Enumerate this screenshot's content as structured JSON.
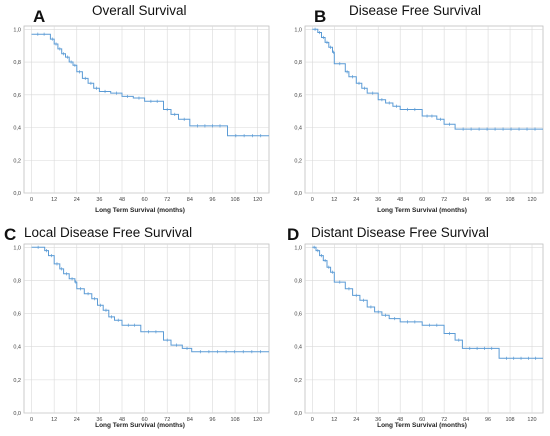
{
  "chart_data": [
    {
      "type": "line",
      "letter": "A",
      "title": "Overall Survival",
      "xlabel": "Long Term Survival (months)",
      "ylabel": "",
      "xlim": [
        -4,
        126
      ],
      "ylim": [
        0,
        1.02
      ],
      "xticks": [
        "0",
        "12",
        "24",
        "36",
        "48",
        "60",
        "72",
        "84",
        "96",
        "108",
        "120"
      ],
      "yticks": [
        "0,0",
        "0,2",
        "0,4",
        "0,6",
        "0,8",
        "1,0"
      ],
      "grid": true,
      "color": "#5b9bd5",
      "series": [
        {
          "x": [
            0,
            10,
            12,
            14,
            16,
            18,
            20,
            22,
            24,
            27,
            30,
            33,
            36,
            42,
            48,
            54,
            60,
            70,
            74,
            78,
            84,
            104,
            126
          ],
          "y": [
            0.97,
            0.94,
            0.91,
            0.88,
            0.85,
            0.83,
            0.8,
            0.78,
            0.74,
            0.7,
            0.67,
            0.64,
            0.62,
            0.61,
            0.59,
            0.58,
            0.56,
            0.51,
            0.48,
            0.45,
            0.41,
            0.35,
            0.35
          ]
        }
      ]
    },
    {
      "type": "line",
      "letter": "B",
      "title": "Disease Free Survival",
      "xlabel": "Long Term Survival (months)",
      "ylabel": "",
      "xlim": [
        -4,
        126
      ],
      "ylim": [
        0,
        1.02
      ],
      "xticks": [
        "0",
        "12",
        "24",
        "36",
        "48",
        "60",
        "72",
        "84",
        "96",
        "108",
        "120"
      ],
      "yticks": [
        "0,0",
        "0,2",
        "0,4",
        "0,6",
        "0,8",
        "1,0"
      ],
      "grid": true,
      "color": "#5b9bd5",
      "series": [
        {
          "x": [
            0,
            3,
            5,
            7,
            9,
            11,
            12,
            18,
            20,
            24,
            27,
            30,
            36,
            40,
            44,
            48,
            60,
            68,
            72,
            78,
            126
          ],
          "y": [
            1.0,
            0.98,
            0.95,
            0.92,
            0.89,
            0.86,
            0.79,
            0.74,
            0.71,
            0.67,
            0.64,
            0.61,
            0.57,
            0.55,
            0.53,
            0.51,
            0.47,
            0.45,
            0.42,
            0.39,
            0.39
          ]
        }
      ]
    },
    {
      "type": "line",
      "letter": "C",
      "title": "Local Disease Free Survival",
      "xlabel": "Long Term Survival (months)",
      "ylabel": "",
      "xlim": [
        -4,
        126
      ],
      "ylim": [
        0,
        1.02
      ],
      "xticks": [
        "0",
        "12",
        "24",
        "36",
        "48",
        "60",
        "72",
        "84",
        "96",
        "108",
        "120"
      ],
      "yticks": [
        "0,0",
        "0,2",
        "0,4",
        "0,6",
        "0,8",
        "1,0"
      ],
      "grid": true,
      "color": "#5b9bd5",
      "series": [
        {
          "x": [
            0,
            7,
            9,
            12,
            15,
            17,
            20,
            23,
            24,
            28,
            32,
            35,
            38,
            41,
            44,
            48,
            58,
            70,
            74,
            80,
            85,
            126
          ],
          "y": [
            1.0,
            0.98,
            0.95,
            0.9,
            0.87,
            0.84,
            0.81,
            0.79,
            0.75,
            0.72,
            0.69,
            0.65,
            0.62,
            0.58,
            0.56,
            0.53,
            0.49,
            0.44,
            0.41,
            0.39,
            0.37,
            0.37
          ]
        }
      ]
    },
    {
      "type": "line",
      "letter": "D",
      "title": "Distant Disease Free Survival",
      "xlabel": "Long Term Survival (months)",
      "ylabel": "",
      "xlim": [
        -4,
        126
      ],
      "ylim": [
        0,
        1.02
      ],
      "xticks": [
        "0",
        "12",
        "24",
        "36",
        "48",
        "60",
        "72",
        "84",
        "96",
        "108",
        "120"
      ],
      "yticks": [
        "0,0",
        "0,2",
        "0,4",
        "0,6",
        "0,8",
        "1,0"
      ],
      "grid": true,
      "color": "#5b9bd5",
      "series": [
        {
          "x": [
            0,
            2,
            4,
            6,
            8,
            10,
            12,
            18,
            22,
            26,
            30,
            34,
            38,
            42,
            48,
            60,
            72,
            78,
            82,
            102,
            126
          ],
          "y": [
            1.0,
            0.98,
            0.95,
            0.92,
            0.88,
            0.85,
            0.79,
            0.75,
            0.71,
            0.68,
            0.64,
            0.61,
            0.59,
            0.57,
            0.55,
            0.53,
            0.48,
            0.44,
            0.39,
            0.33,
            0.33
          ]
        }
      ]
    }
  ]
}
